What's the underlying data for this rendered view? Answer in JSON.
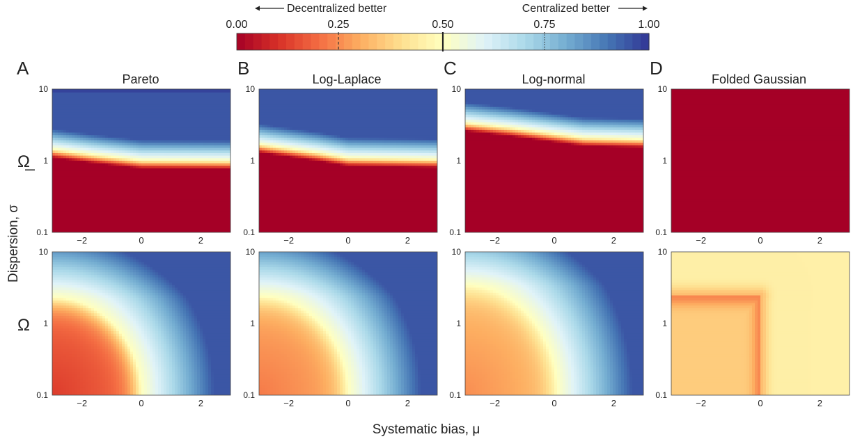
{
  "colorbar": {
    "left_note": "Decentralized better",
    "right_note": "Centralized better",
    "ticks": [
      "0.00",
      "0.25",
      "0.50",
      "0.75",
      "1.00"
    ],
    "range": [
      0,
      1
    ],
    "markers": [
      {
        "value": 0.25,
        "style": "dashed"
      },
      {
        "value": 0.5,
        "style": "solid"
      },
      {
        "value": 0.75,
        "style": "dotted"
      }
    ],
    "colormap": [
      "#a50026",
      "#d73027",
      "#f46d43",
      "#fdae61",
      "#fee090",
      "#ffffbf",
      "#e0f3f8",
      "#abd9e9",
      "#74add1",
      "#4575b4",
      "#313695"
    ]
  },
  "row_labels": [
    "Ω̲",
    "Ω"
  ],
  "shared_ylabel": "Dispersion, σ",
  "shared_xlabel": "Systematic bias, μ",
  "chart_data": [
    {
      "type": "heatmap",
      "panel_letter": "A",
      "title": "Pareto",
      "row": "Ω̲",
      "x": [
        -3,
        3
      ],
      "y_scale": "log",
      "ylim": [
        0.1,
        10
      ],
      "xticks": [
        "−2",
        "0",
        "2"
      ],
      "yticks": [
        "0.1",
        "1",
        "10"
      ],
      "pattern": "horizontal",
      "boundary": [
        [
          -3,
          1.45
        ],
        [
          -1.5,
          1.2
        ],
        [
          0,
          1.02
        ],
        [
          3,
          1.0
        ]
      ]
    },
    {
      "type": "heatmap",
      "panel_letter": "B",
      "title": "Log-Laplace",
      "row": "Ω̲",
      "x": [
        -3,
        3
      ],
      "y_scale": "log",
      "ylim": [
        0.1,
        10
      ],
      "xticks": [
        "−2",
        "0",
        "2"
      ],
      "yticks": [
        "0.1",
        "1",
        "10"
      ],
      "pattern": "horizontal",
      "boundary": [
        [
          -3,
          1.7
        ],
        [
          -1,
          1.3
        ],
        [
          0,
          1.1
        ],
        [
          3,
          1.05
        ]
      ]
    },
    {
      "type": "heatmap",
      "panel_letter": "C",
      "title": "Log-normal",
      "row": "Ω̲",
      "x": [
        -3,
        3
      ],
      "y_scale": "log",
      "ylim": [
        0.1,
        10
      ],
      "xticks": [
        "−2",
        "0",
        "2"
      ],
      "yticks": [
        "0.1",
        "1",
        "10"
      ],
      "pattern": "horizontal",
      "boundary": [
        [
          -3,
          3.4
        ],
        [
          -1.5,
          2.9
        ],
        [
          1,
          2.1
        ],
        [
          3,
          2.0
        ]
      ]
    },
    {
      "type": "heatmap",
      "panel_letter": "D",
      "title": "Folded Gaussian",
      "row": "Ω̲",
      "x": [
        -3,
        3
      ],
      "y_scale": "log",
      "ylim": [
        0.1,
        10
      ],
      "xticks": [
        "−2",
        "0",
        "2"
      ],
      "yticks": [
        "0.1",
        "1",
        "10"
      ],
      "pattern": "uniform",
      "value": 0.0
    },
    {
      "type": "heatmap",
      "row": "Ω",
      "x": [
        -3,
        3
      ],
      "y_scale": "log",
      "ylim": [
        0.1,
        10
      ],
      "xticks": [
        "−2",
        "0",
        "2"
      ],
      "yticks": [
        "0.1",
        "1",
        "10"
      ],
      "pattern": "quarter",
      "intercept_x": 0.0,
      "intercept_y": 2.3,
      "inside": 0.2
    },
    {
      "type": "heatmap",
      "row": "Ω",
      "x": [
        -3,
        3
      ],
      "y_scale": "log",
      "ylim": [
        0.1,
        10
      ],
      "xticks": [
        "−2",
        "0",
        "2"
      ],
      "yticks": [
        "0.1",
        "1",
        "10"
      ],
      "pattern": "quarter",
      "intercept_x": 0.0,
      "intercept_y": 2.4,
      "inside": 0.3
    },
    {
      "type": "heatmap",
      "row": "Ω",
      "x": [
        -3,
        3
      ],
      "y_scale": "log",
      "ylim": [
        0.1,
        10
      ],
      "xticks": [
        "−2",
        "0",
        "2"
      ],
      "yticks": [
        "0.1",
        "1",
        "10"
      ],
      "pattern": "quarter",
      "intercept_x": 0.1,
      "intercept_y": 3.4,
      "inside": 0.33
    },
    {
      "type": "heatmap",
      "row": "Ω",
      "x": [
        -3,
        3
      ],
      "y_scale": "log",
      "ylim": [
        0.1,
        10
      ],
      "xticks": [
        "−2",
        "0",
        "2"
      ],
      "yticks": [
        "0.1",
        "1",
        "10"
      ],
      "pattern": "folded",
      "intercept_x": 0.0,
      "intercept_y": 2.4,
      "base": 0.4,
      "edge": 0.3
    }
  ]
}
